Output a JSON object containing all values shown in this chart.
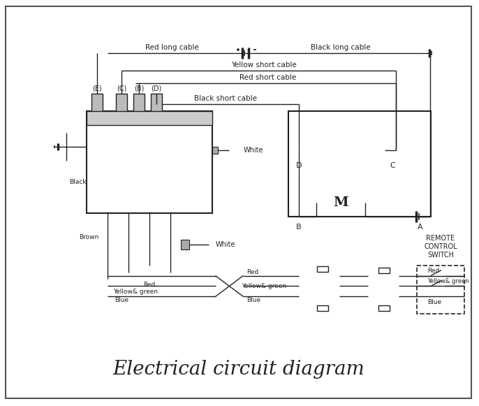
{
  "title": "Electrical circuit diagram",
  "title_fontsize": 20,
  "bg_color": "#ffffff",
  "border_color": "#333333",
  "line_color": "#222222",
  "labels": {
    "red_long": "Red long cable",
    "black_long": "Black long cable",
    "yellow_short": "Yellow short cable",
    "red_short": "Red short cable",
    "black_short": "Black short cable",
    "white1": "White",
    "white2": "White",
    "black_wire": "Black",
    "brown_wire": "Brown",
    "red_label1": "Red",
    "yellow_green1": "Yellow& green",
    "blue1": "Blue",
    "red_label2": "Red",
    "yellow_green2": "Yellow& green",
    "blue2": "Blue",
    "yellow_green3": "Yellow& green",
    "red_label3": "Red",
    "blue3": "Blue",
    "remote": "REMOTE\nCONTROL\nSWITCH",
    "terminal_E": "(E)",
    "terminal_C": "(C)",
    "terminal_B": "(B)",
    "terminal_D": "(D)",
    "node_A": "A",
    "node_B": "B",
    "node_C": "C",
    "node_D": "D"
  }
}
